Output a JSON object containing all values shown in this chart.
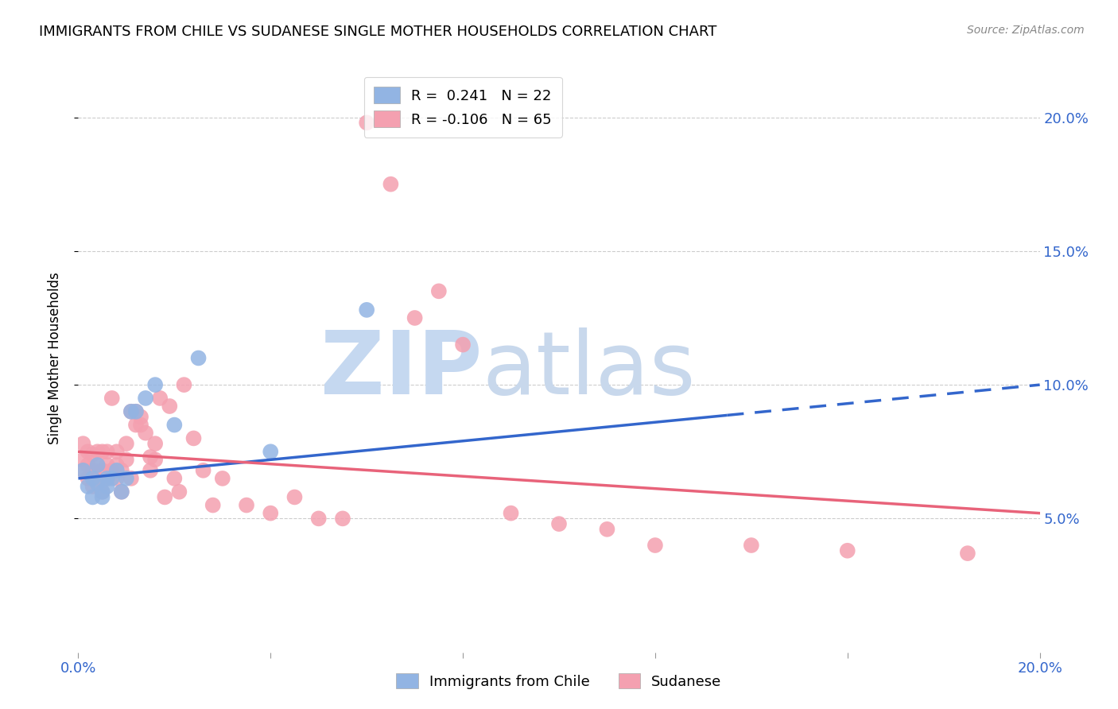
{
  "title": "IMMIGRANTS FROM CHILE VS SUDANESE SINGLE MOTHER HOUSEHOLDS CORRELATION CHART",
  "source": "Source: ZipAtlas.com",
  "ylabel": "Single Mother Households",
  "xlim": [
    0.0,
    0.2
  ],
  "ylim": [
    0.0,
    0.22
  ],
  "yticks": [
    0.05,
    0.1,
    0.15,
    0.2
  ],
  "ytick_labels": [
    "5.0%",
    "10.0%",
    "15.0%",
    "20.0%"
  ],
  "xticks": [
    0.0,
    0.04,
    0.08,
    0.12,
    0.16,
    0.2
  ],
  "chile_R": 0.241,
  "chile_N": 22,
  "sudan_R": -0.106,
  "sudan_N": 65,
  "chile_color": "#92b4e3",
  "sudan_color": "#f4a0b0",
  "chile_line_color": "#3366cc",
  "sudan_line_color": "#e8637a",
  "watermark_zip": "ZIP",
  "watermark_atlas": "atlas",
  "watermark_color": "#dde8f5",
  "chile_line_x0": 0.0,
  "chile_line_y0": 0.065,
  "chile_line_x1": 0.2,
  "chile_line_y1": 0.1,
  "chile_line_solid_end": 0.135,
  "sudan_line_x0": 0.0,
  "sudan_line_y0": 0.075,
  "sudan_line_x1": 0.2,
  "sudan_line_y1": 0.052,
  "chile_scatter_x": [
    0.001,
    0.002,
    0.003,
    0.003,
    0.004,
    0.004,
    0.005,
    0.005,
    0.006,
    0.006,
    0.007,
    0.008,
    0.009,
    0.01,
    0.011,
    0.012,
    0.014,
    0.016,
    0.02,
    0.025,
    0.04,
    0.06
  ],
  "chile_scatter_y": [
    0.068,
    0.062,
    0.065,
    0.058,
    0.07,
    0.063,
    0.06,
    0.058,
    0.062,
    0.065,
    0.065,
    0.068,
    0.06,
    0.065,
    0.09,
    0.09,
    0.095,
    0.1,
    0.085,
    0.11,
    0.075,
    0.128
  ],
  "sudan_scatter_x": [
    0.001,
    0.001,
    0.001,
    0.002,
    0.002,
    0.002,
    0.003,
    0.003,
    0.003,
    0.004,
    0.004,
    0.004,
    0.005,
    0.005,
    0.005,
    0.006,
    0.006,
    0.006,
    0.007,
    0.007,
    0.008,
    0.008,
    0.008,
    0.009,
    0.009,
    0.01,
    0.01,
    0.011,
    0.011,
    0.012,
    0.012,
    0.013,
    0.013,
    0.014,
    0.015,
    0.015,
    0.016,
    0.016,
    0.017,
    0.018,
    0.019,
    0.02,
    0.021,
    0.022,
    0.024,
    0.026,
    0.028,
    0.03,
    0.035,
    0.04,
    0.045,
    0.05,
    0.055,
    0.06,
    0.065,
    0.07,
    0.075,
    0.08,
    0.09,
    0.1,
    0.11,
    0.12,
    0.14,
    0.16,
    0.185
  ],
  "sudan_scatter_y": [
    0.068,
    0.072,
    0.078,
    0.065,
    0.07,
    0.075,
    0.062,
    0.068,
    0.074,
    0.065,
    0.07,
    0.075,
    0.06,
    0.068,
    0.075,
    0.065,
    0.07,
    0.075,
    0.068,
    0.095,
    0.065,
    0.07,
    0.075,
    0.06,
    0.068,
    0.072,
    0.078,
    0.065,
    0.09,
    0.085,
    0.09,
    0.085,
    0.088,
    0.082,
    0.068,
    0.073,
    0.072,
    0.078,
    0.095,
    0.058,
    0.092,
    0.065,
    0.06,
    0.1,
    0.08,
    0.068,
    0.055,
    0.065,
    0.055,
    0.052,
    0.058,
    0.05,
    0.05,
    0.198,
    0.175,
    0.125,
    0.135,
    0.115,
    0.052,
    0.048,
    0.046,
    0.04,
    0.04,
    0.038,
    0.037
  ]
}
